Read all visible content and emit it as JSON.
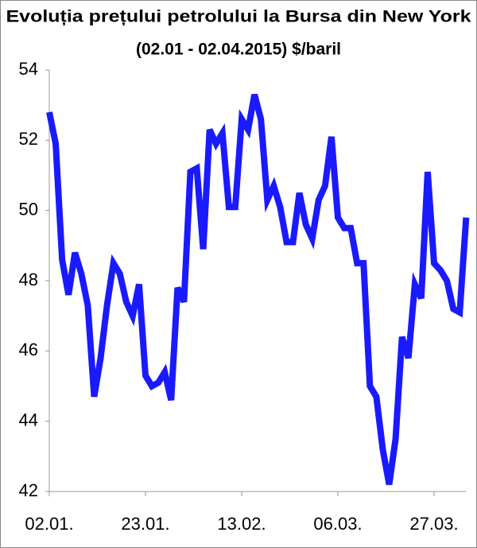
{
  "chart_data": {
    "type": "line",
    "title": "Evoluția prețului petrolului la Bursa din New York",
    "subtitle": "(02.01 - 02.04.2015)  $/baril",
    "categories": [
      "02.01.",
      null,
      null,
      null,
      null,
      null,
      null,
      null,
      null,
      null,
      null,
      null,
      null,
      null,
      null,
      "23.01.",
      null,
      null,
      null,
      null,
      null,
      null,
      null,
      null,
      null,
      null,
      null,
      null,
      null,
      null,
      "13.02.",
      null,
      null,
      null,
      null,
      null,
      null,
      null,
      null,
      null,
      null,
      null,
      null,
      null,
      null,
      "06.03.",
      null,
      null,
      null,
      null,
      null,
      null,
      null,
      null,
      null,
      null,
      null,
      null,
      null,
      null,
      "27.03.",
      null,
      null,
      null,
      null,
      null
    ],
    "series": [
      {
        "color": "#1a1aff",
        "values": [
          52.8,
          51.9,
          48.6,
          47.6,
          48.8,
          48.2,
          47.3,
          44.7,
          45.8,
          47.3,
          48.5,
          48.2,
          47.4,
          47.0,
          47.9,
          45.3,
          45.0,
          45.1,
          45.4,
          44.6,
          47.8,
          47.4,
          51.1,
          51.2,
          48.9,
          52.3,
          51.9,
          52.2,
          50.1,
          50.1,
          52.6,
          52.3,
          53.3,
          52.6,
          50.3,
          50.7,
          50.1,
          49.1,
          49.1,
          50.5,
          49.6,
          49.2,
          50.3,
          50.7,
          52.1,
          49.8,
          49.5,
          49.5,
          48.5,
          48.5,
          45.0,
          44.7,
          43.2,
          42.2,
          43.5,
          46.4,
          45.8,
          47.9,
          47.5,
          51.1,
          48.5,
          48.3,
          48.0,
          47.2,
          47.1,
          49.8
        ]
      }
    ],
    "ylim": [
      42,
      54
    ],
    "yticks": [
      42,
      44,
      46,
      48,
      50,
      52,
      54
    ]
  }
}
